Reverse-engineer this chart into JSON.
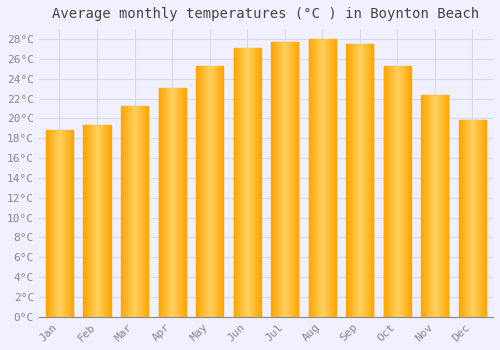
{
  "title": "Average monthly temperatures (°C ) in Boynton Beach",
  "months": [
    "Jan",
    "Feb",
    "Mar",
    "Apr",
    "May",
    "Jun",
    "Jul",
    "Aug",
    "Sep",
    "Oct",
    "Nov",
    "Dec"
  ],
  "temperatures": [
    18.8,
    19.3,
    21.2,
    23.1,
    25.3,
    27.1,
    27.7,
    28.0,
    27.5,
    25.3,
    22.4,
    19.8
  ],
  "bar_color_center": "#FFD060",
  "bar_color_edge": "#FFA500",
  "ylim": [
    0,
    29
  ],
  "ytick_values": [
    0,
    2,
    4,
    6,
    8,
    10,
    12,
    14,
    16,
    18,
    20,
    22,
    24,
    26,
    28
  ],
  "background_color": "#F0F0FF",
  "plot_bg_color": "#F0F0FF",
  "grid_color": "#D8D8E8",
  "title_fontsize": 10,
  "tick_fontsize": 8,
  "tick_color": "#888888",
  "title_color": "#444444",
  "font_family": "monospace"
}
